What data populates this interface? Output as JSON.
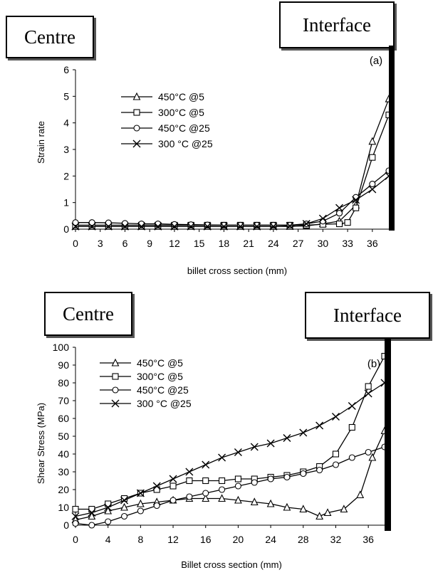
{
  "labels": {
    "centre": "Centre",
    "interface": "Interface"
  },
  "chart_data": [
    {
      "type": "line",
      "panel_label": "(a)",
      "xlabel": "billet cross section (mm)",
      "ylabel": "Strain rate",
      "xlim": [
        0,
        38
      ],
      "ylim": [
        0,
        6
      ],
      "xticks": [
        0,
        3,
        6,
        9,
        12,
        15,
        18,
        21,
        24,
        27,
        30,
        33,
        36
      ],
      "yticks": [
        0,
        1,
        2,
        3,
        4,
        5,
        6
      ],
      "legend_position": "upper-left",
      "series": [
        {
          "name": "450°C @5",
          "marker": "triangle",
          "x": [
            0,
            2,
            4,
            6,
            8,
            10,
            12,
            14,
            16,
            18,
            20,
            22,
            24,
            26,
            28,
            30,
            32,
            34,
            36,
            38
          ],
          "y": [
            0.1,
            0.1,
            0.1,
            0.1,
            0.1,
            0.1,
            0.1,
            0.1,
            0.1,
            0.1,
            0.1,
            0.1,
            0.1,
            0.1,
            0.12,
            0.2,
            0.3,
            0.9,
            3.3,
            4.9
          ]
        },
        {
          "name": "300°C @5",
          "marker": "square",
          "x": [
            0,
            2,
            4,
            6,
            8,
            10,
            12,
            14,
            16,
            18,
            20,
            22,
            24,
            26,
            28,
            30,
            32,
            33,
            34,
            36,
            38
          ],
          "y": [
            0.15,
            0.15,
            0.15,
            0.15,
            0.15,
            0.15,
            0.15,
            0.15,
            0.15,
            0.15,
            0.15,
            0.15,
            0.15,
            0.15,
            0.15,
            0.18,
            0.2,
            0.25,
            0.8,
            2.7,
            4.3
          ]
        },
        {
          "name": "450°C @25",
          "marker": "circle",
          "x": [
            0,
            2,
            4,
            6,
            8,
            10,
            12,
            14,
            16,
            18,
            20,
            22,
            24,
            26,
            28,
            30,
            32,
            34,
            36,
            38
          ],
          "y": [
            0.25,
            0.25,
            0.24,
            0.22,
            0.2,
            0.2,
            0.18,
            0.17,
            0.16,
            0.15,
            0.15,
            0.15,
            0.15,
            0.15,
            0.2,
            0.3,
            0.6,
            1.2,
            1.7,
            2.2
          ]
        },
        {
          "name": "300 °C @25",
          "marker": "x",
          "x": [
            0,
            2,
            4,
            6,
            8,
            10,
            12,
            14,
            16,
            18,
            20,
            22,
            24,
            26,
            28,
            30,
            32,
            34,
            36,
            38
          ],
          "y": [
            0.1,
            0.1,
            0.1,
            0.1,
            0.1,
            0.1,
            0.1,
            0.1,
            0.1,
            0.1,
            0.1,
            0.1,
            0.1,
            0.12,
            0.2,
            0.4,
            0.8,
            1.1,
            1.5,
            2.0
          ]
        }
      ]
    },
    {
      "type": "line",
      "panel_label": "(b)",
      "xlabel": "Billet cross section (mm)",
      "ylabel": "Shear Stress (MPa)",
      "xlim": [
        0,
        38
      ],
      "ylim": [
        0,
        100
      ],
      "xticks": [
        0,
        4,
        8,
        12,
        16,
        20,
        24,
        28,
        32,
        36
      ],
      "yticks": [
        0,
        10,
        20,
        30,
        40,
        50,
        60,
        70,
        80,
        90,
        100
      ],
      "legend_position": "upper-left",
      "series": [
        {
          "name": "450°C @5",
          "marker": "triangle",
          "x": [
            0,
            2,
            4,
            6,
            8,
            10,
            12,
            14,
            16,
            18,
            20,
            22,
            24,
            26,
            28,
            30,
            31,
            33,
            35,
            36.5,
            38
          ],
          "y": [
            3,
            5,
            8,
            10,
            12,
            13,
            14,
            15,
            15,
            15,
            14,
            13,
            12,
            10,
            9,
            5,
            7,
            9,
            17,
            38,
            53
          ]
        },
        {
          "name": "300°C @5",
          "marker": "square",
          "x": [
            0,
            2,
            4,
            6,
            8,
            10,
            12,
            14,
            16,
            18,
            20,
            22,
            24,
            26,
            28,
            30,
            32,
            34,
            36,
            38
          ],
          "y": [
            9,
            9,
            12,
            15,
            18,
            20,
            22,
            25,
            25,
            25,
            26,
            26,
            27,
            28,
            30,
            33,
            40,
            55,
            78,
            95
          ]
        },
        {
          "name": "450°C @25",
          "marker": "circle",
          "x": [
            0,
            2,
            4,
            6,
            8,
            10,
            12,
            14,
            16,
            18,
            20,
            22,
            24,
            26,
            28,
            30,
            32,
            34,
            36,
            38
          ],
          "y": [
            1,
            0,
            2,
            5,
            8,
            11,
            14,
            16,
            18,
            20,
            22,
            24,
            26,
            27,
            29,
            31,
            34,
            38,
            41,
            44
          ]
        },
        {
          "name": "300 °C @25",
          "marker": "x",
          "x": [
            0,
            2,
            4,
            6,
            8,
            10,
            12,
            14,
            16,
            18,
            20,
            22,
            24,
            26,
            28,
            30,
            32,
            34,
            36,
            38
          ],
          "y": [
            5,
            7,
            10,
            14,
            18,
            22,
            26,
            30,
            34,
            38,
            41,
            44,
            46,
            49,
            52,
            56,
            61,
            67,
            74,
            80
          ]
        }
      ]
    }
  ]
}
